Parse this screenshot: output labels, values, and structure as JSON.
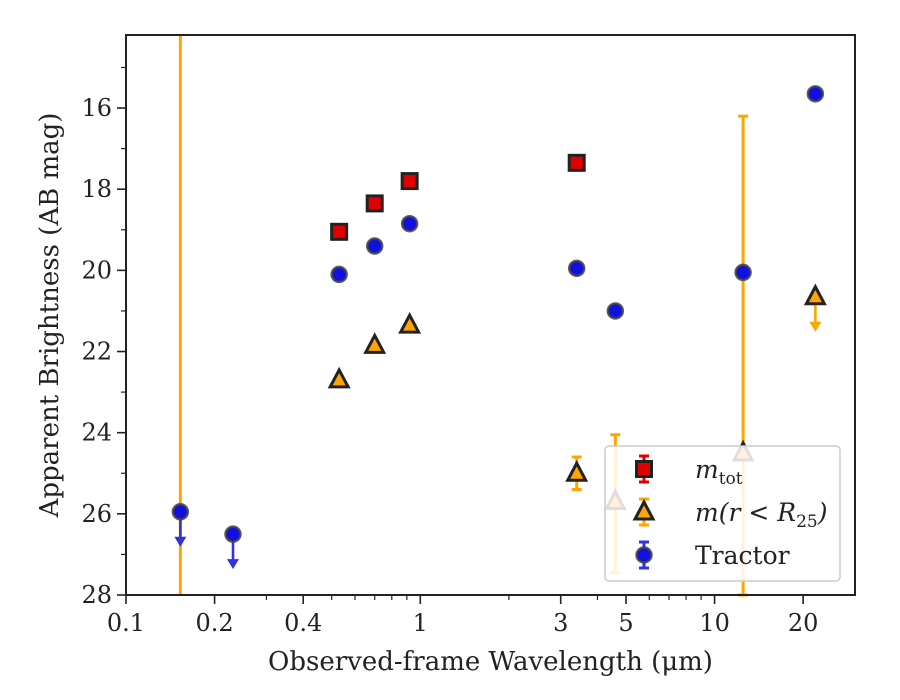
{
  "chart_data": {
    "type": "scatter",
    "xlabel": "Observed-frame Wavelength (μm)",
    "ylabel": "Apparent Brightness (AB mag)",
    "xscale": "log",
    "xlim": [
      0.1,
      30
    ],
    "ylim": [
      28,
      14.2
    ],
    "y_inverted": true,
    "x_ticks": [
      {
        "value": 0.1,
        "label": "0.1"
      },
      {
        "value": 0.2,
        "label": "0.2"
      },
      {
        "value": 0.4,
        "label": "0.4"
      },
      {
        "value": 1,
        "label": "1"
      },
      {
        "value": 3,
        "label": "3"
      },
      {
        "value": 5,
        "label": "5"
      },
      {
        "value": 10,
        "label": "10"
      },
      {
        "value": 20,
        "label": "20"
      }
    ],
    "y_ticks": [
      {
        "value": 16,
        "label": "16"
      },
      {
        "value": 18,
        "label": "18"
      },
      {
        "value": 20,
        "label": "20"
      },
      {
        "value": 22,
        "label": "22"
      },
      {
        "value": 24,
        "label": "24"
      },
      {
        "value": 26,
        "label": "26"
      },
      {
        "value": 28,
        "label": "28"
      }
    ],
    "legend_position": "lower-right",
    "series": [
      {
        "name": "m_tot",
        "legend_main": "m",
        "legend_sub": "tot",
        "marker": "square",
        "color": "#e00000",
        "errcolor": "#e00000",
        "points": [
          {
            "x": 0.53,
            "y": 19.05
          },
          {
            "x": 0.7,
            "y": 18.35
          },
          {
            "x": 0.92,
            "y": 17.8
          },
          {
            "x": 3.4,
            "y": 17.35
          }
        ]
      },
      {
        "name": "m(r < R_25)",
        "legend_main": "m(r < R",
        "legend_sub": "25",
        "legend_tail": ")",
        "marker": "triangle",
        "color": "#ffa500",
        "errcolor": "#ffa500",
        "points": [
          {
            "x": 0.53,
            "y": 22.7
          },
          {
            "x": 0.7,
            "y": 21.85
          },
          {
            "x": 0.92,
            "y": 21.35
          },
          {
            "x": 3.4,
            "y": 25.0,
            "yerr": [
              24.6,
              25.4
            ]
          },
          {
            "x": 4.6,
            "y": 25.7,
            "yerr": [
              24.05,
              27.45
            ]
          },
          {
            "x": 12.5,
            "y": 24.5,
            "yerr": [
              16.2,
              28.0
            ]
          },
          {
            "x": 22,
            "y": 20.65,
            "upper_limit": true
          }
        ]
      },
      {
        "name": "Tractor",
        "legend_main": "Tractor",
        "marker": "circle",
        "color": "#1010e0",
        "errcolor": "#3333dd",
        "points": [
          {
            "x": 0.153,
            "y": 25.95,
            "upper_limit": true
          },
          {
            "x": 0.231,
            "y": 26.5,
            "upper_limit": true
          },
          {
            "x": 0.53,
            "y": 20.1
          },
          {
            "x": 0.7,
            "y": 19.4
          },
          {
            "x": 0.92,
            "y": 18.85
          },
          {
            "x": 3.4,
            "y": 19.95
          },
          {
            "x": 4.6,
            "y": 21.0
          },
          {
            "x": 12.5,
            "y": 20.05
          },
          {
            "x": 22,
            "y": 15.65
          }
        ]
      }
    ],
    "vertical_error_lines": [
      {
        "x": 0.153,
        "color": "#ffa500"
      }
    ]
  }
}
